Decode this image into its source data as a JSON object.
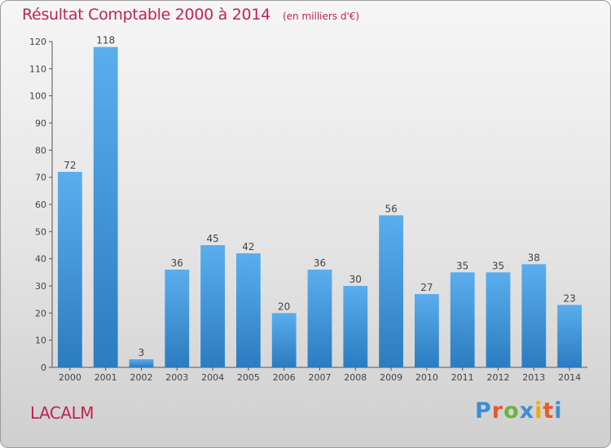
{
  "header": {
    "title": "Résultat Comptable 2000 à 2014",
    "subtitle": "(en milliers d'€)"
  },
  "footer": {
    "commune": "LACALM",
    "brand": "Proxiti",
    "brand_colors": [
      "#3a8fd6",
      "#e85a2a",
      "#6cb33f",
      "#3a8fd6",
      "#f2a900",
      "#e85a2a",
      "#3a8fd6"
    ]
  },
  "chart_data": {
    "type": "bar",
    "categories": [
      "2000",
      "2001",
      "2002",
      "2003",
      "2004",
      "2005",
      "2006",
      "2007",
      "2008",
      "2009",
      "2010",
      "2011",
      "2012",
      "2013",
      "2014"
    ],
    "values": [
      72,
      118,
      3,
      36,
      45,
      42,
      20,
      36,
      30,
      56,
      27,
      35,
      35,
      38,
      23
    ],
    "ylim": [
      0,
      120
    ],
    "yticks": [
      0,
      10,
      20,
      30,
      40,
      50,
      60,
      70,
      80,
      90,
      100,
      110,
      120
    ],
    "grid": false,
    "legend": "none",
    "bar_color": "#4ea3e6",
    "bar_color_dark": "#2e7fc4"
  }
}
